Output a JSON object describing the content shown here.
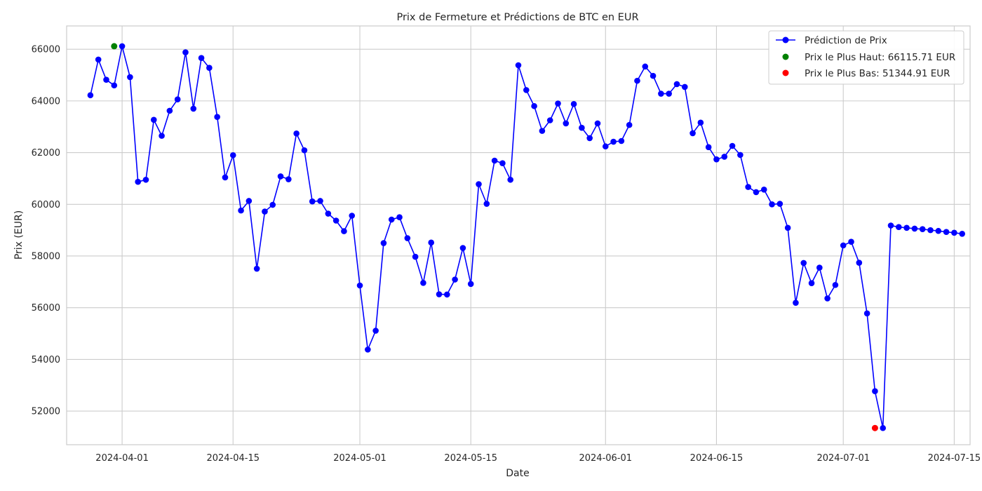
{
  "chart_data": {
    "type": "line",
    "title": "Prix de Fermeture et Prédictions de BTC en EUR",
    "xlabel": "Date",
    "ylabel": "Prix (EUR)",
    "x_start_date": "2024-03-28",
    "x_range": [
      "2024-03-25",
      "2024-07-17"
    ],
    "ylim": [
      50700,
      66900
    ],
    "x_ticks": [
      "2024-04-01",
      "2024-04-15",
      "2024-05-01",
      "2024-05-15",
      "2024-06-01",
      "2024-06-15",
      "2024-07-01",
      "2024-07-15"
    ],
    "y_ticks": [
      52000,
      54000,
      56000,
      58000,
      60000,
      62000,
      64000,
      66000
    ],
    "grid": true,
    "legend_position": "top-right",
    "series": [
      {
        "name": "Prédiction de Prix",
        "color": "#0000ff",
        "marker": "circle",
        "values": [
          64220,
          65600,
          64820,
          64600,
          66115.71,
          64920,
          60870,
          60950,
          63270,
          62650,
          63620,
          64060,
          65880,
          63700,
          65660,
          65280,
          63380,
          61040,
          61900,
          59760,
          60130,
          57510,
          59720,
          59980,
          61080,
          60970,
          62740,
          62090,
          60110,
          60130,
          59640,
          59370,
          58960,
          59560,
          56860,
          54380,
          55110,
          58500,
          59410,
          59500,
          58690,
          57970,
          56960,
          58520,
          56520,
          56510,
          57090,
          58310,
          56920,
          60780,
          60020,
          61690,
          61590,
          60950,
          65380,
          64420,
          63800,
          62840,
          63250,
          63900,
          63130,
          63880,
          62960,
          62560,
          63130,
          62240,
          62420,
          62450,
          63070,
          64780,
          65330,
          64970,
          64280,
          64280,
          64650,
          64540,
          62750,
          63160,
          62210,
          61740,
          61840,
          62260,
          61910,
          60670,
          60470,
          60570,
          60000,
          60020,
          59090,
          56190,
          57730,
          56950,
          57550,
          56360,
          56880,
          58410,
          58550,
          57740,
          55780,
          52770,
          51344.91,
          59180,
          59120,
          59090,
          59060,
          59040,
          59000,
          58970,
          58930,
          58900,
          58860
        ]
      }
    ],
    "highlights": [
      {
        "label": "Prix le Plus Haut: 66115.71 EUR",
        "color": "#008000",
        "date": "2024-03-31",
        "value": 66115.71
      },
      {
        "label": "Prix le Plus Bas: 51344.91 EUR",
        "color": "#ff0000",
        "date": "2024-07-05",
        "value": 51344.91
      }
    ]
  }
}
